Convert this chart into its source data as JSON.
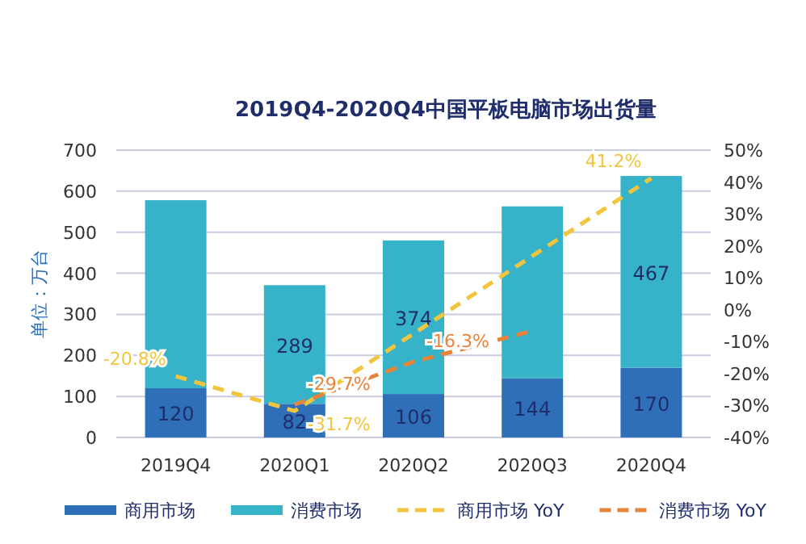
{
  "chart_data": {
    "type": "bar",
    "title": "2019Q4-2020Q4中国平板电脑市场出货量",
    "ylabel": "单位：万台",
    "categories": [
      "2019Q4",
      "2020Q1",
      "2020Q2",
      "2020Q3",
      "2020Q4"
    ],
    "stacked": true,
    "grid": "y",
    "legend": "bottom",
    "ylim": [
      0,
      700
    ],
    "yticks": [
      0,
      100,
      200,
      300,
      400,
      500,
      600,
      700
    ],
    "y2lim": [
      -40,
      50
    ],
    "y2ticks": [
      {
        "value": -40,
        "label": "-40%"
      },
      {
        "value": -30,
        "label": "-30%"
      },
      {
        "value": -20,
        "label": "-20%"
      },
      {
        "value": -10,
        "label": "-10%"
      },
      {
        "value": 0,
        "label": "0%"
      },
      {
        "value": 10,
        "label": "10%"
      },
      {
        "value": 20,
        "label": "20%"
      },
      {
        "value": 30,
        "label": "30%"
      },
      {
        "value": 40,
        "label": "40%"
      },
      {
        "value": 50,
        "label": "50%"
      }
    ],
    "series": [
      {
        "name": "商用市场",
        "color": "#2e6fb8",
        "values": [
          120,
          82,
          106,
          144,
          170
        ],
        "value_labels": [
          "120",
          "82",
          "106",
          "144",
          "170"
        ]
      },
      {
        "name": "消费市场",
        "color": "#36b3c9",
        "values": [
          458,
          289,
          374,
          419,
          467
        ],
        "value_labels": [
          null,
          "289",
          "374",
          null,
          "467"
        ]
      },
      {
        "name": "商用市场 YoY",
        "type": "line",
        "axis": "y2",
        "line_style": "dashed",
        "color": "#f2c53d",
        "values": [
          -20.8,
          -31.7,
          -7.5,
          null,
          41.2
        ],
        "value_labels": [
          "-20.8%",
          "-31.7%",
          null,
          null,
          "41.2%"
        ]
      },
      {
        "name": "消费市场 YoY",
        "type": "line",
        "axis": "y2",
        "line_style": "dashed",
        "color": "#e8843a",
        "values": [
          null,
          -29.7,
          -16.3,
          -6.6,
          null
        ],
        "value_labels": [
          null,
          "-29.7%",
          "-16.3%",
          null,
          null
        ]
      }
    ]
  }
}
